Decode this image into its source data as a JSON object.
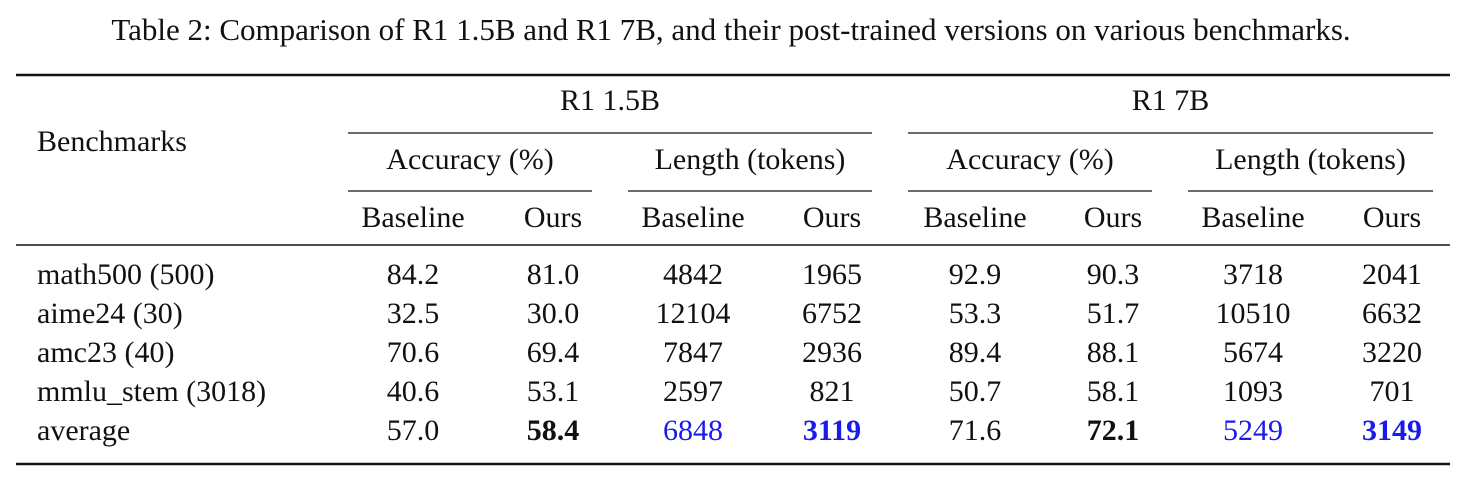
{
  "caption": "Table 2: Comparison of R1 1.5B and R1 7B, and their post-trained versions on various benchmarks.",
  "table": {
    "row_header": "Benchmarks",
    "models": [
      {
        "name": "R1 1.5B",
        "metrics": [
          {
            "name": "Accuracy (%)",
            "columns": [
              "Baseline",
              "Ours"
            ]
          },
          {
            "name": "Length (tokens)",
            "columns": [
              "Baseline",
              "Ours"
            ]
          }
        ]
      },
      {
        "name": "R1 7B",
        "metrics": [
          {
            "name": "Accuracy (%)",
            "columns": [
              "Baseline",
              "Ours"
            ]
          },
          {
            "name": "Length (tokens)",
            "columns": [
              "Baseline",
              "Ours"
            ]
          }
        ]
      }
    ],
    "rows": [
      [
        "math500 (500)",
        "84.2",
        "81.0",
        "4842",
        "1965",
        "92.9",
        "90.3",
        "3718",
        "2041"
      ],
      [
        "aime24 (30)",
        "32.5",
        "30.0",
        "12104",
        "6752",
        "53.3",
        "51.7",
        "10510",
        "6632"
      ],
      [
        "amc23 (40)",
        "70.6",
        "69.4",
        "7847",
        "2936",
        "89.4",
        "88.1",
        "5674",
        "3220"
      ],
      [
        "mmlu_stem (3018)",
        "40.6",
        "53.1",
        "2597",
        "821",
        "50.7",
        "58.1",
        "1093",
        "701"
      ],
      [
        "average",
        "57.0",
        "58.4",
        "6848",
        "3119",
        "71.6",
        "72.1",
        "5249",
        "3149"
      ]
    ]
  }
}
